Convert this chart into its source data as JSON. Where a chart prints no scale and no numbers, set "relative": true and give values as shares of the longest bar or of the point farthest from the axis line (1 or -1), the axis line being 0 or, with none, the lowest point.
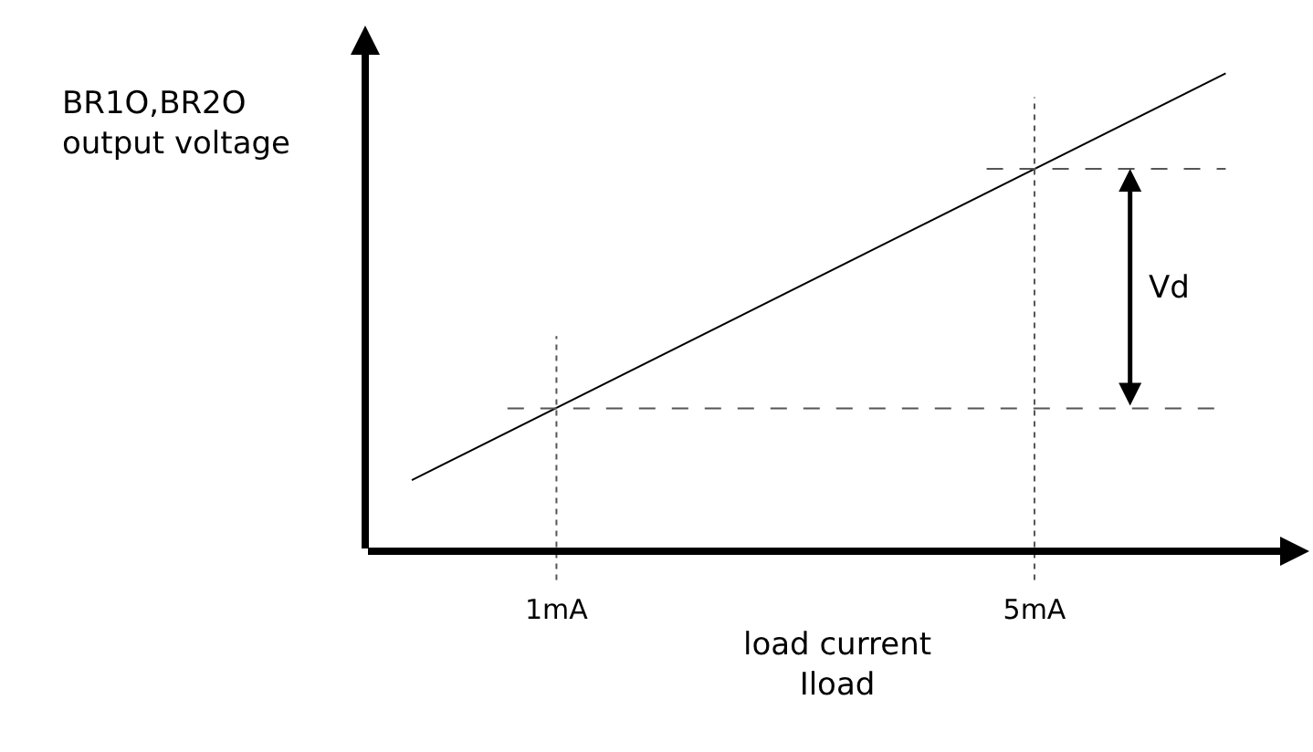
{
  "chart_data": {
    "type": "line",
    "relative": true,
    "xlabel": "load current\nIload",
    "ylabel": "BR1O,BR2O\noutput voltage",
    "xlim": [
      -0.6,
      7.3
    ],
    "xticks": [
      {
        "value": 1,
        "label": "1mA"
      },
      {
        "value": 5,
        "label": "5mA"
      }
    ],
    "series": [
      {
        "color": "#000000",
        "x": [
          -0.21,
          6.6
        ],
        "values": [
          0.149,
          1
        ]
      }
    ],
    "ref_lines": [
      {
        "axis": "x",
        "value": 1,
        "color": "#555555",
        "line_style": "dotted"
      },
      {
        "axis": "x",
        "value": 5,
        "color": "#555555",
        "line_style": "dotted"
      },
      {
        "axis": "y",
        "value": 0.299,
        "color": "#555555",
        "line_style": "dashed"
      },
      {
        "axis": "y",
        "value": 0.8,
        "color": "#555555",
        "line_style": "dashed"
      }
    ],
    "annotations": [
      "Vd"
    ],
    "marker": "none",
    "line_style": "solid"
  }
}
